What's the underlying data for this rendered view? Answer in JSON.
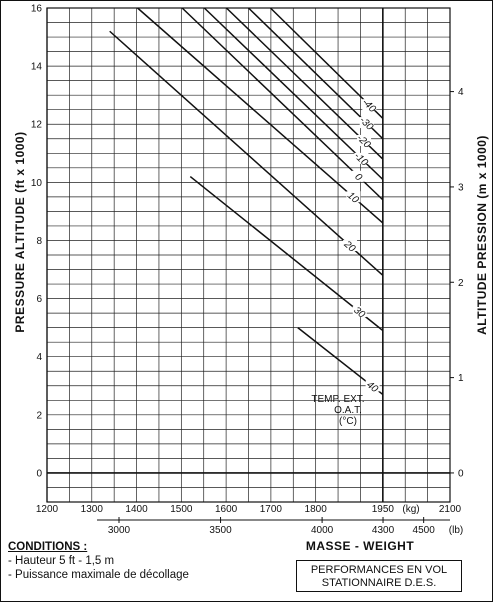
{
  "chart_data": {
    "type": "line",
    "title": "",
    "ylabel_left": "PRESSURE ALTITUDE (ft x 1000)",
    "ylabel_right": "ALTITUDE PRESSION (m x 1000)",
    "xlabel": "MASSE - WEIGHT",
    "x_kg_ticks": [
      "1200",
      "1300",
      "1400",
      "1500",
      "1600",
      "1700",
      "1800",
      "1950",
      "2100"
    ],
    "x_kg_unit": "(kg)",
    "x_lb_ticks": [
      "3000",
      "3500",
      "4000",
      "4300",
      "4500"
    ],
    "x_lb_unit": "(lb)",
    "y_left_ticks": [
      "0",
      "2",
      "4",
      "6",
      "8",
      "10",
      "12",
      "14",
      "16"
    ],
    "y_right_ticks": [
      "0",
      "1",
      "2",
      "3",
      "4"
    ],
    "xlim_kg": [
      1200,
      2100
    ],
    "ylim_ft_x1000": [
      -1,
      16
    ],
    "grid": true,
    "oat_label": [
      "TEMP. EXT.",
      "O.A.T.",
      "(°C)"
    ],
    "series": [
      {
        "name": "-40",
        "points": [
          [
            1600,
            17.5
          ],
          [
            1950,
            12.2
          ]
        ]
      },
      {
        "name": "-30",
        "points": [
          [
            1550,
            17.5
          ],
          [
            1950,
            11.5
          ]
        ]
      },
      {
        "name": "-20",
        "points": [
          [
            1500,
            17.5
          ],
          [
            1950,
            10.8
          ]
        ]
      },
      {
        "name": "-10",
        "points": [
          [
            1450,
            17.5
          ],
          [
            1950,
            10.1
          ]
        ]
      },
      {
        "name": "0",
        "points": [
          [
            1400,
            17.5
          ],
          [
            1950,
            9.4
          ]
        ]
      },
      {
        "name": "10",
        "points": [
          [
            1380,
            16.3
          ],
          [
            1950,
            8.6
          ]
        ]
      },
      {
        "name": "20",
        "points": [
          [
            1340,
            15.2
          ],
          [
            1950,
            6.8
          ]
        ]
      },
      {
        "name": "30",
        "points": [
          [
            1520,
            10.2
          ],
          [
            1950,
            4.9
          ]
        ]
      },
      {
        "name": "40",
        "points": [
          [
            1760,
            5.0
          ],
          [
            1950,
            2.7
          ]
        ]
      }
    ]
  },
  "conditions": {
    "title": "CONDITIONS :",
    "lines": [
      "- Hauteur 5 ft - 1,5 m",
      "- Puissance maximale de décollage"
    ]
  },
  "performance_box": {
    "line1": "PERFORMANCES EN VOL",
    "line2": "STATIONNAIRE D.E.S."
  }
}
